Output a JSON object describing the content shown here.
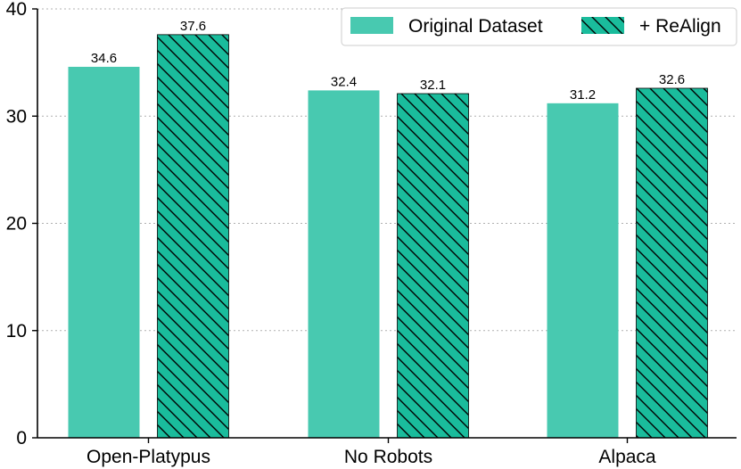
{
  "chart_data": {
    "type": "bar",
    "categories": [
      "Open-Platypus",
      "No Robots",
      "Alpaca"
    ],
    "series": [
      {
        "name": "Original Dataset",
        "values": [
          34.6,
          32.4,
          31.2
        ],
        "color": "#48c9b0",
        "hatch": false
      },
      {
        "name": "+ ReAlign",
        "values": [
          37.6,
          32.1,
          32.6
        ],
        "color": "#1abc9c",
        "hatch": true
      }
    ],
    "data_labels": [
      [
        "34.6",
        "32.4",
        "31.2"
      ],
      [
        "37.6",
        "32.1",
        "32.6"
      ]
    ],
    "y_ticks": [
      "0",
      "10",
      "20",
      "30",
      "40"
    ],
    "ylim": [
      0,
      40
    ],
    "grid": "horizontal-dotted",
    "legend_position": "top-right",
    "title": "",
    "xlabel": "",
    "ylabel": ""
  }
}
